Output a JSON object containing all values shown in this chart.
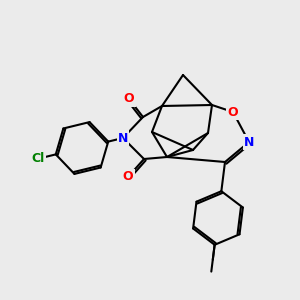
{
  "bg_color": "#ebebeb",
  "bond_color": "#000000",
  "bond_width": 1.5,
  "atom_colors": {
    "O": "#ff0000",
    "N": "#0000ff",
    "Cl": "#008000",
    "C": "#000000"
  }
}
